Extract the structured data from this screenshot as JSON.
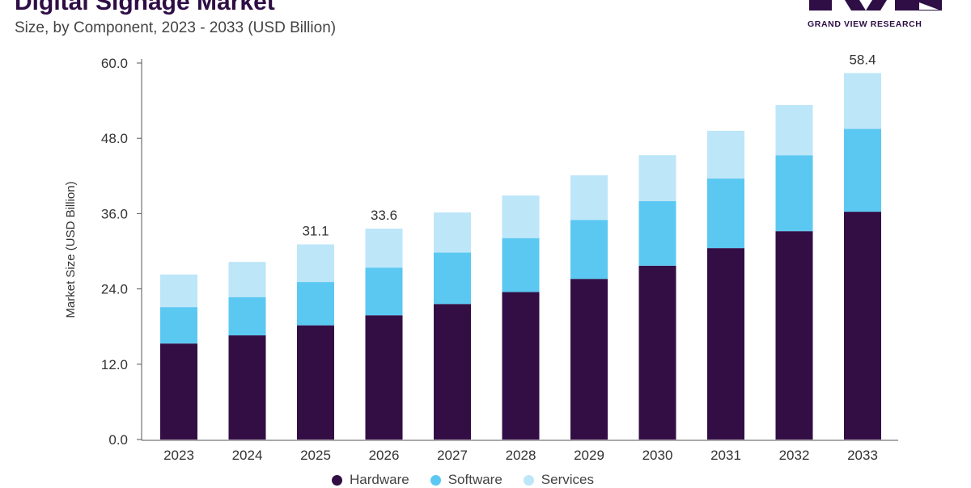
{
  "header": {
    "title": "Digital Signage Market",
    "subtitle": "Size, by Component, 2023 - 2033 (USD Billion)"
  },
  "logo": {
    "text": "GRAND VIEW RESEARCH",
    "color": "#2e0e45"
  },
  "chart_data": {
    "type": "bar",
    "stacked": true,
    "title": "Digital Signage Market",
    "subtitle": "Size, by Component, 2023 - 2033 (USD Billion)",
    "xlabel": "",
    "ylabel": "Market Size (USD Billion)",
    "categories": [
      "2023",
      "2024",
      "2025",
      "2026",
      "2027",
      "2028",
      "2029",
      "2030",
      "2031",
      "2032",
      "2033"
    ],
    "series": [
      {
        "name": "Hardware",
        "color": "#330e45",
        "values": [
          15.3,
          16.6,
          18.2,
          19.8,
          21.6,
          23.5,
          25.6,
          27.7,
          30.5,
          33.2,
          36.3
        ]
      },
      {
        "name": "Software",
        "color": "#5bc8f2",
        "values": [
          5.8,
          6.1,
          6.9,
          7.6,
          8.2,
          8.6,
          9.4,
          10.3,
          11.1,
          12.1,
          13.2
        ]
      },
      {
        "name": "Services",
        "color": "#bde6f8",
        "values": [
          5.2,
          5.6,
          6.0,
          6.2,
          6.4,
          6.8,
          7.1,
          7.3,
          7.6,
          8.0,
          8.9
        ]
      }
    ],
    "ylim": [
      0,
      60
    ],
    "yticks": [
      "0.0",
      "12.0",
      "24.0",
      "36.0",
      "48.0",
      "60.0"
    ],
    "annotations": [
      {
        "category": "2025",
        "label": "31.1"
      },
      {
        "category": "2026",
        "label": "33.6"
      },
      {
        "category": "2033",
        "label": "58.4"
      }
    ],
    "legend_position": "bottom-center",
    "grid": false
  }
}
